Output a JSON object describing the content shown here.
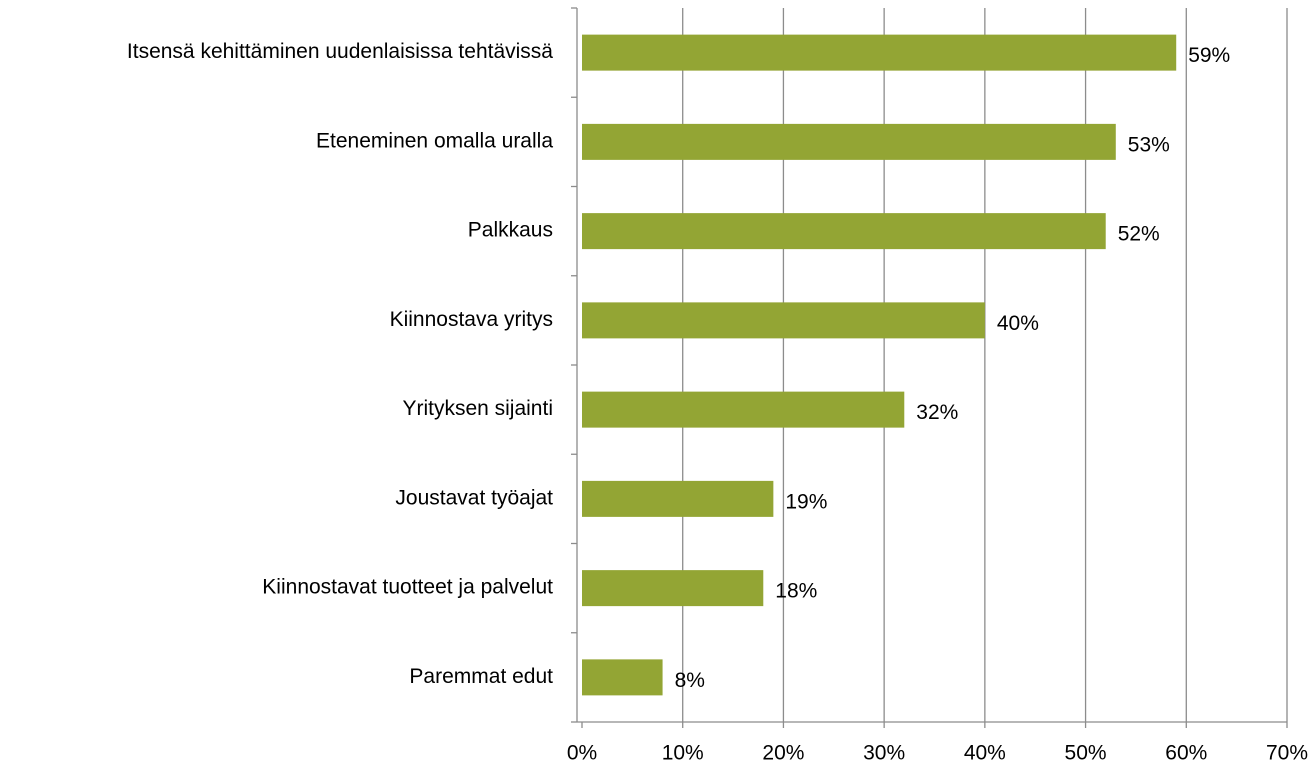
{
  "chart_data": {
    "type": "bar",
    "orientation": "horizontal",
    "categories": [
      "Itsensä kehittäminen uudenlaisissa tehtävissä",
      "Eteneminen omalla uralla",
      "Palkkaus",
      "Kiinnostava yritys",
      "Yrityksen sijainti",
      "Joustavat työajat",
      "Kiinnostavat tuotteet ja palvelut",
      "Paremmat edut"
    ],
    "values": [
      59,
      53,
      52,
      40,
      32,
      19,
      18,
      8
    ],
    "value_labels": [
      "59%",
      "53%",
      "52%",
      "40%",
      "32%",
      "19%",
      "18%",
      "8%"
    ],
    "color": "#93a534",
    "xlim": [
      0,
      70
    ],
    "xticks": [
      {
        "value": 0,
        "label": "0%"
      },
      {
        "value": 10,
        "label": "10%"
      },
      {
        "value": 20,
        "label": "20%"
      },
      {
        "value": 30,
        "label": "30%"
      },
      {
        "value": 40,
        "label": "40%"
      },
      {
        "value": 50,
        "label": "50%"
      },
      {
        "value": 60,
        "label": "60%"
      },
      {
        "value": 70,
        "label": "70%"
      }
    ],
    "grid": true
  }
}
